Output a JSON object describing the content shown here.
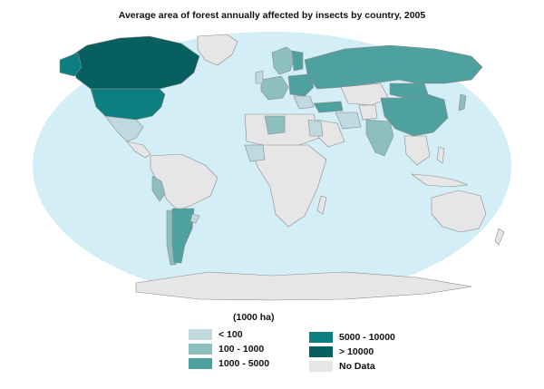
{
  "title": "Average area of forest annually affected by insects by country, 2005",
  "unit_label": "(1000 ha)",
  "legend": [
    {
      "label": "< 100",
      "color": "#bfd9df"
    },
    {
      "label": "100 - 1000",
      "color": "#8dbfc0"
    },
    {
      "label": "1000 - 5000",
      "color": "#4fa1a0"
    },
    {
      "label": "5000 - 10000",
      "color": "#0e7f81"
    },
    {
      "label": "> 10000",
      "color": "#07605f"
    },
    {
      "label": "No Data",
      "color": "#e6e6e6"
    }
  ],
  "colors": {
    "ocean": "#d3eef7",
    "no_data": "#e6e6e6",
    "border": "#8a8a8a"
  }
}
